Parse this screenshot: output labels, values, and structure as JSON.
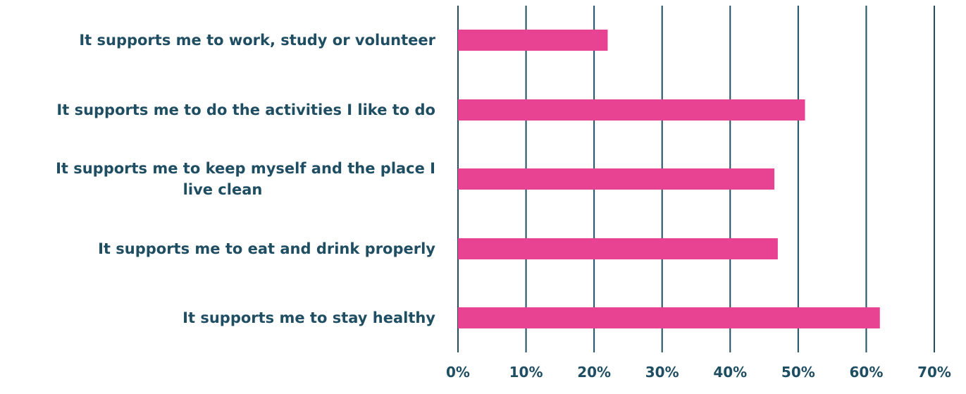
{
  "chart_data": {
    "type": "bar",
    "orientation": "horizontal",
    "categories": [
      "It supports me to work, study or volunteer",
      "It supports me to do the activities I like to do",
      "It supports me to keep myself and the place I live clean",
      "It supports me to eat and drink properly",
      "It supports me to stay healthy"
    ],
    "category_lines": [
      [
        "It supports me to work, study or volunteer"
      ],
      [
        "It supports me to do the activities I like to do"
      ],
      [
        "It supports me to keep myself and the place I",
        "live clean"
      ],
      [
        "It supports me to eat and drink properly"
      ],
      [
        "It supports me to stay healthy"
      ]
    ],
    "values": [
      22,
      51,
      46.5,
      47,
      62
    ],
    "xlim": [
      0,
      70
    ],
    "x_ticks": [
      0,
      10,
      20,
      30,
      40,
      50,
      60,
      70
    ],
    "x_tick_labels": [
      "0%",
      "10%",
      "20%",
      "30%",
      "40%",
      "50%",
      "60%",
      "70%"
    ],
    "grid": true,
    "title": "",
    "xlabel": "",
    "ylabel": ""
  },
  "colors": {
    "bar": "#e84393",
    "text": "#1f4e63",
    "grid": "#1f4e63"
  }
}
